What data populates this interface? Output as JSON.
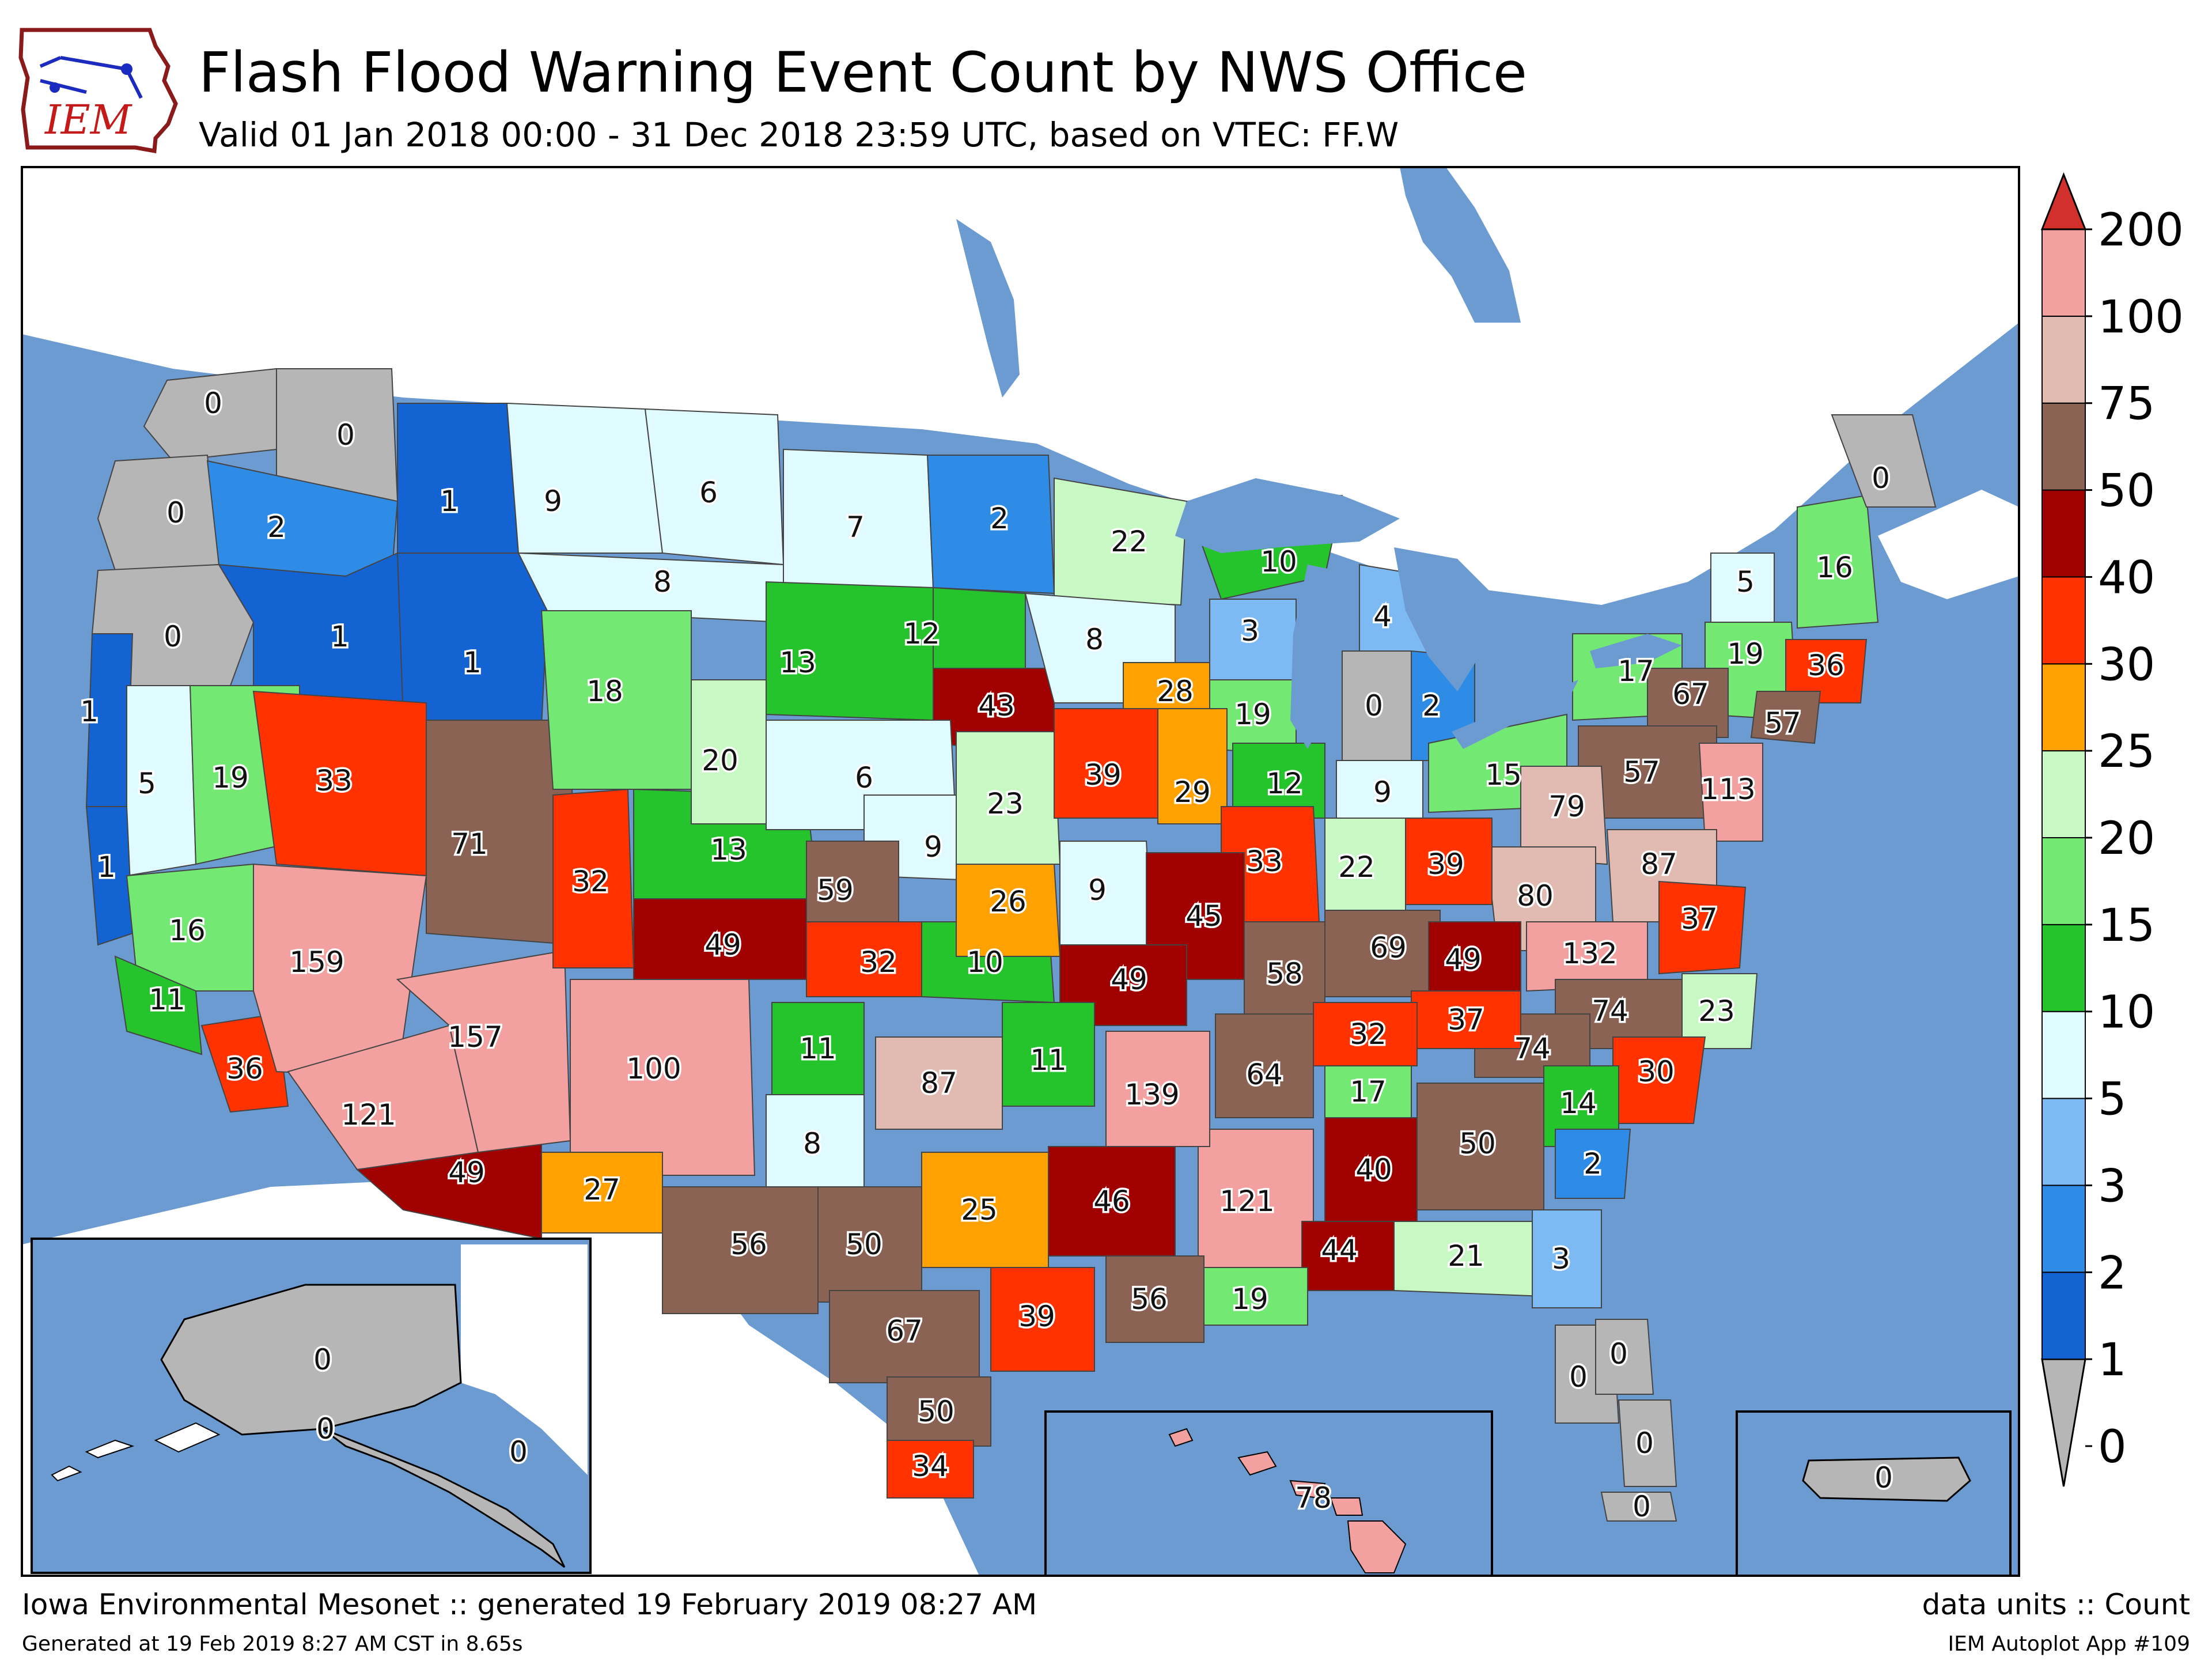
{
  "header": {
    "logo_text": "IEM",
    "title": "Flash Flood Warning Event Count by NWS Office",
    "subtitle": "Valid 01 Jan 2018 00:00 - 31 Dec 2018 23:59 UTC, based on VTEC: FF.W"
  },
  "colorbar": {
    "ticks": [
      "0",
      "1",
      "2",
      "3",
      "5",
      "10",
      "15",
      "20",
      "25",
      "30",
      "40",
      "50",
      "75",
      "100",
      "200"
    ],
    "colors": [
      "#b6b6b6",
      "#1463d2",
      "#2f8ce6",
      "#7db9f3",
      "#e0fbff",
      "#25c42c",
      "#73e873",
      "#c8f8c3",
      "#ffa100",
      "#ff3200",
      "#a00000",
      "#8b6355",
      "#e1bbb1",
      "#f3a0a0",
      "#d2302d"
    ]
  },
  "map": {
    "ocean_color": "#6b9bd1",
    "land_color": "#ffffff",
    "office_counts": [
      {
        "office": "SEW",
        "value": 0,
        "label": "0"
      },
      {
        "office": "OTX",
        "value": 0,
        "label": "0"
      },
      {
        "office": "PQR",
        "value": 0,
        "label": "0"
      },
      {
        "office": "PDT",
        "value": 2,
        "label": "2"
      },
      {
        "office": "MFR",
        "value": 0,
        "label": "0"
      },
      {
        "office": "MSO",
        "value": 1,
        "label": "1"
      },
      {
        "office": "BOI",
        "value": 1,
        "label": "1"
      },
      {
        "office": "PIH",
        "value": 1,
        "label": "1"
      },
      {
        "office": "TFX",
        "value": 9,
        "label": "9"
      },
      {
        "office": "GGW",
        "value": 6,
        "label": "6"
      },
      {
        "office": "BYZ",
        "value": 8,
        "label": "8"
      },
      {
        "office": "BIS",
        "value": 7,
        "label": "7"
      },
      {
        "office": "FGF",
        "value": 2,
        "label": "2"
      },
      {
        "office": "DLH",
        "value": 22,
        "label": "22"
      },
      {
        "office": "MQT",
        "value": 10,
        "label": "10"
      },
      {
        "office": "APX",
        "value": 4,
        "label": "4"
      },
      {
        "office": "EKA",
        "value": 1,
        "label": "1"
      },
      {
        "office": "STO",
        "value": 5,
        "label": "5"
      },
      {
        "office": "REV",
        "value": 19,
        "label": "19"
      },
      {
        "office": "LKN",
        "value": 33,
        "label": "33"
      },
      {
        "office": "MTR",
        "value": 1,
        "label": "1"
      },
      {
        "office": "HNX",
        "value": 16,
        "label": "16"
      },
      {
        "office": "LOX",
        "value": 11,
        "label": "11"
      },
      {
        "office": "SGX",
        "value": 36,
        "label": "36"
      },
      {
        "office": "VEF",
        "value": 159,
        "label": "159"
      },
      {
        "office": "PSR",
        "value": 121,
        "label": "121"
      },
      {
        "office": "TWC",
        "value": 49,
        "label": "49"
      },
      {
        "office": "FGZ",
        "value": 157,
        "label": "157"
      },
      {
        "office": "SLC",
        "value": 71,
        "label": "71"
      },
      {
        "office": "GJT",
        "value": 32,
        "label": "32"
      },
      {
        "office": "PUB",
        "value": 49,
        "label": "49"
      },
      {
        "office": "BOU",
        "value": 13,
        "label": "13"
      },
      {
        "office": "RIW",
        "value": 18,
        "label": "18"
      },
      {
        "office": "CYS",
        "value": 20,
        "label": "20"
      },
      {
        "office": "UNR",
        "value": 13,
        "label": "13"
      },
      {
        "office": "ABR",
        "value": 12,
        "label": "12"
      },
      {
        "office": "FSD",
        "value": 43,
        "label": "43"
      },
      {
        "office": "MPX",
        "value": 8,
        "label": "8"
      },
      {
        "office": "GRB",
        "value": 3,
        "label": "3"
      },
      {
        "office": "ARX",
        "value": 28,
        "label": "28"
      },
      {
        "office": "MKX",
        "value": 19,
        "label": "19"
      },
      {
        "office": "GRR",
        "value": 0,
        "label": "0"
      },
      {
        "office": "DTX",
        "value": 2,
        "label": "2"
      },
      {
        "office": "LBF",
        "value": 6,
        "label": "6"
      },
      {
        "office": "GID",
        "value": 9,
        "label": "9"
      },
      {
        "office": "OAX",
        "value": 23,
        "label": "23"
      },
      {
        "office": "DMX",
        "value": 39,
        "label": "39"
      },
      {
        "office": "DVN",
        "value": 29,
        "label": "29"
      },
      {
        "office": "LOT",
        "value": 12,
        "label": "12"
      },
      {
        "office": "IWX",
        "value": 9,
        "label": "9"
      },
      {
        "office": "CLE",
        "value": 15,
        "label": "15"
      },
      {
        "office": "BUF",
        "value": 17,
        "label": "17"
      },
      {
        "office": "BTV",
        "value": 5,
        "label": "5"
      },
      {
        "office": "ALY",
        "value": 19,
        "label": "19"
      },
      {
        "office": "GYX",
        "value": 16,
        "label": "16"
      },
      {
        "office": "CAR",
        "value": 0,
        "label": "0"
      },
      {
        "office": "BOX",
        "value": 36,
        "label": "36"
      },
      {
        "office": "OKX",
        "value": 57,
        "label": "57"
      },
      {
        "office": "BGM",
        "value": 67,
        "label": "67"
      },
      {
        "office": "CTP",
        "value": 57,
        "label": "57"
      },
      {
        "office": "PHI",
        "value": 113,
        "label": "113"
      },
      {
        "office": "PBZ",
        "value": 79,
        "label": "79"
      },
      {
        "office": "LWX",
        "value": 87,
        "label": "87"
      },
      {
        "office": "RLX",
        "value": 80,
        "label": "80"
      },
      {
        "office": "ILN",
        "value": 39,
        "label": "39"
      },
      {
        "office": "IND",
        "value": 22,
        "label": "22"
      },
      {
        "office": "ILX",
        "value": 33,
        "label": "33"
      },
      {
        "office": "GLD",
        "value": 59,
        "label": "59"
      },
      {
        "office": "DDC",
        "value": 32,
        "label": "32"
      },
      {
        "office": "ICT",
        "value": 10,
        "label": "10"
      },
      {
        "office": "TOP",
        "value": 26,
        "label": "26"
      },
      {
        "office": "EAX",
        "value": 9,
        "label": "9"
      },
      {
        "office": "LSX",
        "value": 45,
        "label": "45"
      },
      {
        "office": "SGF",
        "value": 49,
        "label": "49"
      },
      {
        "office": "PAH",
        "value": 58,
        "label": "58"
      },
      {
        "office": "LMK",
        "value": 69,
        "label": "69"
      },
      {
        "office": "JKL",
        "value": 49,
        "label": "49"
      },
      {
        "office": "RNK",
        "value": 132,
        "label": "132"
      },
      {
        "office": "AKQ",
        "value": 37,
        "label": "37"
      },
      {
        "office": "MHX",
        "value": 23,
        "label": "23"
      },
      {
        "office": "RAH",
        "value": 74,
        "label": "74"
      },
      {
        "office": "GSP",
        "value": 74,
        "label": "74"
      },
      {
        "office": "ILM",
        "value": 30,
        "label": "30"
      },
      {
        "office": "CAE",
        "value": 14,
        "label": "14"
      },
      {
        "office": "CHS",
        "value": 2,
        "label": "2"
      },
      {
        "office": "MRX",
        "value": 37,
        "label": "37"
      },
      {
        "office": "OHX",
        "value": 32,
        "label": "32"
      },
      {
        "office": "MEG",
        "value": 64,
        "label": "64"
      },
      {
        "office": "HUN",
        "value": 17,
        "label": "17"
      },
      {
        "office": "FFC",
        "value": 50,
        "label": "50"
      },
      {
        "office": "BMX",
        "value": 40,
        "label": "40"
      },
      {
        "office": "JAN",
        "value": 121,
        "label": "121"
      },
      {
        "office": "MOB",
        "value": 44,
        "label": "44"
      },
      {
        "office": "TAE",
        "value": 21,
        "label": "21"
      },
      {
        "office": "JAX",
        "value": 3,
        "label": "3"
      },
      {
        "office": "TBW",
        "value": 0,
        "label": "0"
      },
      {
        "office": "MLB",
        "value": 0,
        "label": "0"
      },
      {
        "office": "MFL",
        "value": 0,
        "label": "0"
      },
      {
        "office": "KEY",
        "value": 0,
        "label": "0"
      },
      {
        "office": "LIX",
        "value": 19,
        "label": "19"
      },
      {
        "office": "LCH",
        "value": 56,
        "label": "56"
      },
      {
        "office": "SHV",
        "value": 46,
        "label": "46"
      },
      {
        "office": "LZK",
        "value": 139,
        "label": "139"
      },
      {
        "office": "TSA",
        "value": 11,
        "label": "11"
      },
      {
        "office": "OUN",
        "value": 87,
        "label": "87"
      },
      {
        "office": "AMA",
        "value": 11,
        "label": "11"
      },
      {
        "office": "LUB",
        "value": 8,
        "label": "8"
      },
      {
        "office": "ABQ",
        "value": 100,
        "label": "100"
      },
      {
        "office": "EPZ",
        "value": 27,
        "label": "27"
      },
      {
        "office": "MAF",
        "value": 56,
        "label": "56"
      },
      {
        "office": "SJT",
        "value": 50,
        "label": "50"
      },
      {
        "office": "FWD",
        "value": 25,
        "label": "25"
      },
      {
        "office": "HGX",
        "value": 39,
        "label": "39"
      },
      {
        "office": "EWX",
        "value": 67,
        "label": "67"
      },
      {
        "office": "CRP",
        "value": 50,
        "label": "50"
      },
      {
        "office": "BRO",
        "value": 34,
        "label": "34"
      },
      {
        "office": "AFC",
        "value": 0,
        "label": "0"
      },
      {
        "office": "AFG",
        "value": 0,
        "label": "0"
      },
      {
        "office": "AJK",
        "value": 0,
        "label": "0"
      },
      {
        "office": "HFO",
        "value": 78,
        "label": "78"
      },
      {
        "office": "SJU",
        "value": 0,
        "label": "0"
      }
    ]
  },
  "footer": {
    "left_line1": "Iowa Environmental Mesonet :: generated 19 February 2019 08:27 AM",
    "left_line2": "Generated at 19 Feb 2019 8:27 AM CST in 8.65s",
    "right_line1": "data units :: Count",
    "right_line2": "IEM Autoplot App #109"
  }
}
